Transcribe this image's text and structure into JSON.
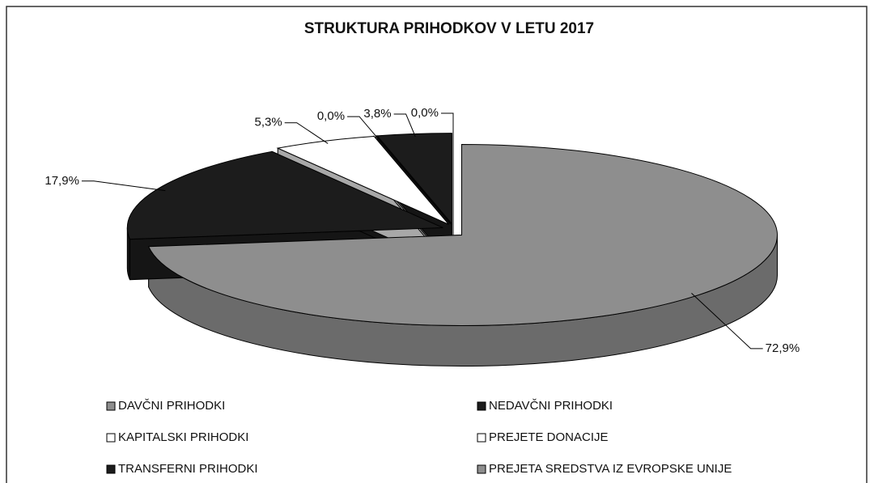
{
  "chart_data": {
    "type": "pie3d",
    "title": "STRUKTURA PRIHODKOV V LETU 2017",
    "categories": [
      "DAVČNI PRIHODKI",
      "NEDAVČNI PRIHODKI",
      "KAPITALSKI PRIHODKI",
      "PREJETE DONACIJE",
      "TRANSFERNI PRIHODKI",
      "PREJETA SREDSTVA IZ EVROPSKE UNIJE"
    ],
    "values": [
      72.9,
      17.9,
      5.3,
      0.0,
      3.8,
      0.0
    ],
    "value_labels": [
      "72,9%",
      "17,9%",
      "5,3%",
      "0,0%",
      "3,8%",
      "0,0%"
    ],
    "colors": [
      "#8e8e8e",
      "#1c1c1c",
      "#ffffff",
      "#ffffff",
      "#1c1c1c",
      "#8e8e8e"
    ],
    "legend": "bottom"
  }
}
